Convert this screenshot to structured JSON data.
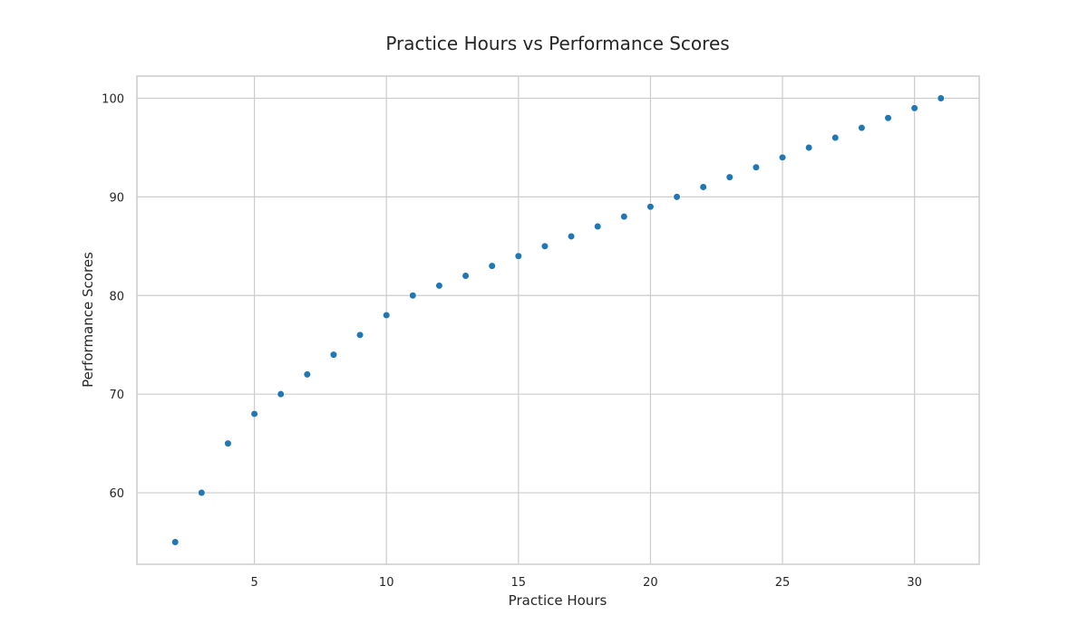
{
  "chart_data": {
    "type": "scatter",
    "title": "Practice Hours vs Performance Scores",
    "xlabel": "Practice Hours",
    "ylabel": "Performance Scores",
    "xlim": [
      0.55,
      32.45
    ],
    "ylim": [
      52.75,
      102.25
    ],
    "xticks": [
      5,
      10,
      15,
      20,
      25,
      30
    ],
    "yticks": [
      60,
      70,
      80,
      90,
      100
    ],
    "grid": true,
    "marker_color": "#1f77b4",
    "series": [
      {
        "x": [
          2,
          3,
          4,
          5,
          6,
          7,
          8,
          9,
          10,
          11,
          12,
          13,
          14,
          15,
          16,
          17,
          18,
          19,
          20,
          21,
          22,
          23,
          24,
          25,
          26,
          27,
          28,
          29,
          30,
          31
        ],
        "y": [
          55,
          60,
          65,
          68,
          70,
          72,
          74,
          76,
          78,
          80,
          81,
          82,
          83,
          84,
          85,
          86,
          87,
          88,
          89,
          90,
          91,
          92,
          93,
          94,
          95,
          96,
          97,
          98,
          99,
          100
        ]
      }
    ]
  }
}
